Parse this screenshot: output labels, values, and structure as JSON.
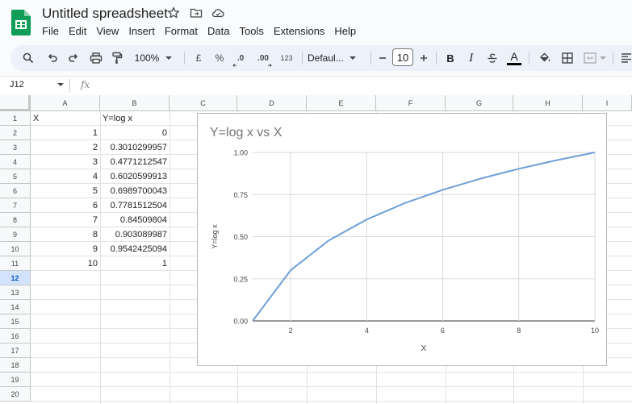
{
  "app": {
    "doc_title": "Untitled spreadsheet",
    "icons": [
      "spreadsheet-logo-icon",
      "star-icon",
      "move-to-folder-icon",
      "cloud-status-icon"
    ]
  },
  "menu": [
    "File",
    "Edit",
    "View",
    "Insert",
    "Format",
    "Data",
    "Tools",
    "Extensions",
    "Help"
  ],
  "toolbar": {
    "zoom": "100%",
    "currency": "£",
    "percent": "%",
    "decrease_decimal": ".0",
    "increase_decimal": ".00",
    "number_format": "123",
    "font": "Defaul...",
    "font_size": "10",
    "bold": "B",
    "italic": "I",
    "underline_text": "A"
  },
  "formula_bar": {
    "name_box": "J12",
    "fx": "fx"
  },
  "grid": {
    "columns": [
      "A",
      "B",
      "C",
      "D",
      "E",
      "F",
      "G",
      "H",
      "I"
    ],
    "rows": [
      "1",
      "2",
      "3",
      "4",
      "5",
      "6",
      "7",
      "8",
      "9",
      "10",
      "11",
      "12",
      "13",
      "14",
      "15",
      "16",
      "17",
      "18",
      "19",
      "20"
    ],
    "active_row": "12",
    "cells_a": [
      "X",
      "1",
      "2",
      "3",
      "4",
      "5",
      "6",
      "7",
      "8",
      "9",
      "10"
    ],
    "cells_b": [
      "Y=log x",
      "0",
      "0.3010299957",
      "0.4771212547",
      "0.6020599913",
      "0.6989700043",
      "0.7781512504",
      "0.84509804",
      "0.903089987",
      "0.9542425094",
      "1"
    ]
  },
  "chart_data": {
    "type": "line",
    "title": "Y=log x vs X",
    "xlabel": "X",
    "ylabel": "Y=log x",
    "x": [
      1,
      2,
      3,
      4,
      5,
      6,
      7,
      8,
      9,
      10
    ],
    "series": [
      {
        "name": "Y=log x",
        "values": [
          0,
          0.3010299957,
          0.4771212547,
          0.6020599913,
          0.6989700043,
          0.7781512504,
          0.84509804,
          0.903089987,
          0.9542425094,
          1
        ]
      }
    ],
    "xlim": [
      1,
      10
    ],
    "ylim": [
      0,
      1
    ],
    "xticks": [
      2,
      4,
      6,
      8,
      10
    ],
    "xtick_labels": [
      "2",
      "4",
      "6",
      "8",
      "10"
    ],
    "yticks": [
      0,
      0.25,
      0.5,
      0.75,
      1
    ],
    "ytick_labels": [
      "0.00",
      "0.25",
      "0.50",
      "0.75",
      "1.00"
    ],
    "grid": true,
    "legend": "none",
    "line_color": "#6f9fd8"
  }
}
